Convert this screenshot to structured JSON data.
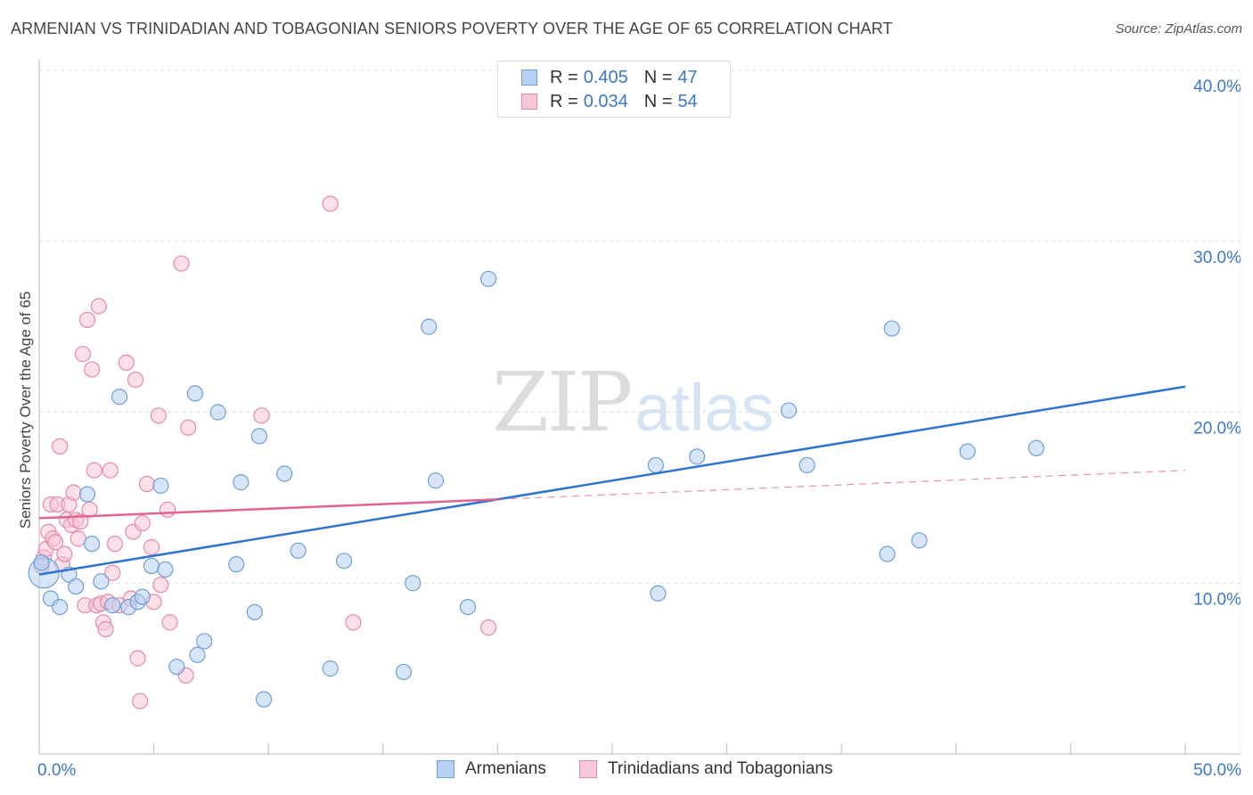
{
  "header": {
    "title": "ARMENIAN VS TRINIDADIAN AND TOBAGONIAN SENIORS POVERTY OVER THE AGE OF 65 CORRELATION CHART",
    "source": "Source: ZipAtlas.com"
  },
  "watermark": {
    "zip": "ZIP",
    "atlas": "atlas"
  },
  "legend": {
    "rows": [
      {
        "r_label": "R =",
        "r_value": "0.405",
        "n_label": "N =",
        "n_value": "47",
        "fill": "#b7d0f2",
        "stroke": "#6f9fd8"
      },
      {
        "r_label": "R =",
        "r_value": "0.034",
        "n_label": "N =",
        "n_value": "54",
        "fill": "#f8c6d6",
        "stroke": "#e48aa8"
      }
    ]
  },
  "bottom_legend": [
    {
      "label": "Armenians",
      "fill": "#b7d0f2",
      "stroke": "#6f9fd8"
    },
    {
      "label": "Trinidadians and Tobagonians",
      "fill": "#f8c6d6",
      "stroke": "#e48aa8"
    }
  ],
  "chart_data": {
    "type": "scatter",
    "title": "ARMENIAN VS TRINIDADIAN AND TOBAGONIAN SENIORS POVERTY OVER THE AGE OF 65 CORRELATION CHART",
    "xlabel": "",
    "ylabel": "Seniors Poverty Over the Age of 65",
    "xlim": [
      0,
      50
    ],
    "ylim": [
      0,
      40
    ],
    "x_tick_labels": [
      {
        "value": 0,
        "label": "0.0%"
      },
      {
        "value": 50,
        "label": "50.0%"
      }
    ],
    "y_tick_labels": [
      {
        "value": 10,
        "label": "10.0%"
      },
      {
        "value": 20,
        "label": "20.0%"
      },
      {
        "value": 30,
        "label": "30.0%"
      },
      {
        "value": 40,
        "label": "40.0%"
      }
    ],
    "grid": true,
    "series": [
      {
        "name": "Armenians",
        "color": "#6f9fd8",
        "fill": "#b7d0f2",
        "trend_color": "#2f72d0",
        "trend": {
          "x0": 0,
          "y0": 10.5,
          "x1": 50,
          "y1": 21.5
        },
        "points": [
          [
            0.2,
            10.6,
            1
          ],
          [
            0.5,
            9.1,
            0
          ],
          [
            0.9,
            8.6,
            0
          ],
          [
            1.3,
            10.5,
            0
          ],
          [
            1.6,
            9.8,
            0
          ],
          [
            2.1,
            15.2,
            0
          ],
          [
            2.3,
            12.3,
            0
          ],
          [
            2.7,
            10.1,
            0
          ],
          [
            3.2,
            8.7,
            0
          ],
          [
            3.5,
            20.9,
            0
          ],
          [
            3.9,
            8.6,
            0
          ],
          [
            4.3,
            8.9,
            0
          ],
          [
            4.5,
            9.2,
            0
          ],
          [
            4.9,
            11.0,
            0
          ],
          [
            5.3,
            15.7,
            0
          ],
          [
            5.5,
            10.8,
            0
          ],
          [
            6.0,
            5.1,
            0
          ],
          [
            6.8,
            21.1,
            0
          ],
          [
            6.9,
            5.8,
            0
          ],
          [
            7.2,
            6.6,
            0
          ],
          [
            7.8,
            20.0,
            0
          ],
          [
            8.6,
            11.1,
            0
          ],
          [
            8.8,
            15.9,
            0
          ],
          [
            9.4,
            8.3,
            0
          ],
          [
            9.6,
            18.6,
            0
          ],
          [
            9.8,
            3.2,
            0
          ],
          [
            10.7,
            16.4,
            0
          ],
          [
            11.3,
            11.9,
            0
          ],
          [
            12.7,
            5.0,
            0
          ],
          [
            13.3,
            11.3,
            0
          ],
          [
            15.9,
            4.8,
            0
          ],
          [
            16.3,
            10.0,
            0
          ],
          [
            17.0,
            25.0,
            0
          ],
          [
            17.3,
            16.0,
            0
          ],
          [
            18.7,
            8.6,
            0
          ],
          [
            19.6,
            27.8,
            0
          ],
          [
            26.9,
            16.9,
            0
          ],
          [
            27.0,
            9.4,
            0
          ],
          [
            28.7,
            17.4,
            0
          ],
          [
            32.7,
            20.1,
            0
          ],
          [
            33.5,
            16.9,
            0
          ],
          [
            37.0,
            11.7,
            0
          ],
          [
            37.2,
            24.9,
            0
          ],
          [
            38.4,
            12.5,
            0
          ],
          [
            40.5,
            17.7,
            0
          ],
          [
            43.5,
            17.9,
            0
          ],
          [
            0.1,
            11.2,
            0
          ]
        ]
      },
      {
        "name": "Trinidadians and Tobagonians",
        "color": "#e48aa8",
        "fill": "#f8c6d6",
        "trend_color": "#e0648e",
        "trend": {
          "x0": 0,
          "y0": 13.8,
          "x1": 20.0,
          "y1": 14.9
        },
        "trend_ext": {
          "x0": 20.0,
          "y0": 14.9,
          "x1": 50,
          "y1": 16.6
        },
        "points": [
          [
            0.1,
            11.0,
            0
          ],
          [
            0.2,
            11.5,
            0
          ],
          [
            0.3,
            12.0,
            0
          ],
          [
            0.4,
            13.0,
            0
          ],
          [
            0.5,
            14.6,
            0
          ],
          [
            0.6,
            12.6,
            0
          ],
          [
            0.7,
            12.4,
            0
          ],
          [
            0.8,
            14.6,
            0
          ],
          [
            0.9,
            18.0,
            0
          ],
          [
            1.0,
            11.1,
            0
          ],
          [
            1.1,
            11.7,
            0
          ],
          [
            1.2,
            13.7,
            0
          ],
          [
            1.3,
            14.6,
            0
          ],
          [
            1.4,
            13.4,
            0
          ],
          [
            1.5,
            15.3,
            0
          ],
          [
            1.6,
            13.7,
            0
          ],
          [
            1.7,
            12.6,
            0
          ],
          [
            1.8,
            13.6,
            0
          ],
          [
            1.9,
            23.4,
            0
          ],
          [
            2.0,
            8.7,
            0
          ],
          [
            2.1,
            25.4,
            0
          ],
          [
            2.2,
            14.3,
            0
          ],
          [
            2.3,
            22.5,
            0
          ],
          [
            2.4,
            16.6,
            0
          ],
          [
            2.5,
            8.7,
            0
          ],
          [
            2.6,
            26.2,
            0
          ],
          [
            2.7,
            8.8,
            0
          ],
          [
            2.8,
            7.7,
            0
          ],
          [
            2.9,
            7.3,
            0
          ],
          [
            3.0,
            8.9,
            0
          ],
          [
            3.1,
            16.6,
            0
          ],
          [
            3.2,
            10.6,
            0
          ],
          [
            3.3,
            12.3,
            0
          ],
          [
            3.5,
            8.7,
            0
          ],
          [
            3.8,
            22.9,
            0
          ],
          [
            4.0,
            9.1,
            0
          ],
          [
            4.1,
            13.0,
            0
          ],
          [
            4.2,
            21.9,
            0
          ],
          [
            4.3,
            5.6,
            0
          ],
          [
            4.4,
            3.1,
            0
          ],
          [
            4.5,
            13.5,
            0
          ],
          [
            4.7,
            15.8,
            0
          ],
          [
            4.9,
            12.1,
            0
          ],
          [
            5.0,
            8.9,
            0
          ],
          [
            5.2,
            19.8,
            0
          ],
          [
            5.3,
            9.9,
            0
          ],
          [
            5.6,
            14.3,
            0
          ],
          [
            5.7,
            7.7,
            0
          ],
          [
            6.2,
            28.7,
            0
          ],
          [
            6.4,
            4.6,
            0
          ],
          [
            6.5,
            19.1,
            0
          ],
          [
            9.7,
            19.8,
            0
          ],
          [
            12.7,
            32.2,
            0
          ],
          [
            13.7,
            7.7,
            0
          ],
          [
            19.6,
            7.4,
            0
          ]
        ]
      }
    ]
  }
}
